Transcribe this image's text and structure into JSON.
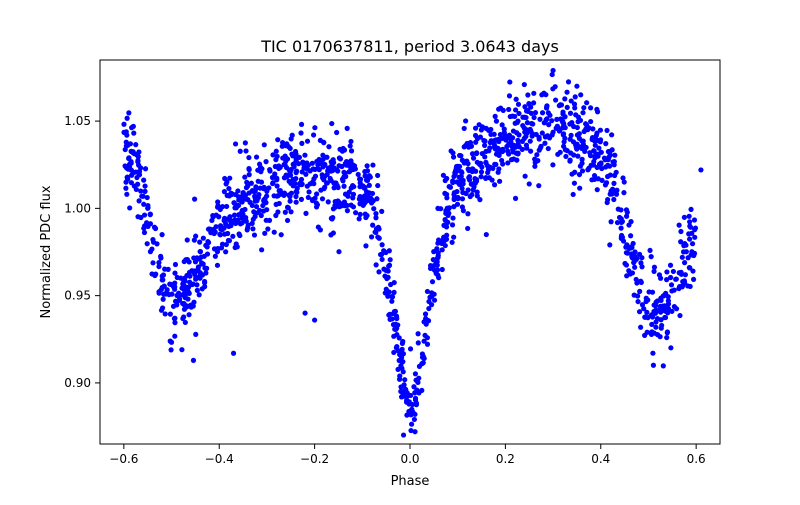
{
  "title": "TIC 0170637811, period 3.0643 days",
  "xlabel": "Phase",
  "ylabel": "Normalized PDC flux",
  "chart_data": {
    "type": "scatter",
    "title": "TIC 0170637811, period 3.0643 days",
    "xlabel": "Phase",
    "ylabel": "Normalized PDC flux",
    "xlim": [
      -0.65,
      0.65
    ],
    "ylim": [
      0.865,
      1.085
    ],
    "x_ticks": [
      -0.6,
      -0.4,
      -0.2,
      0.0,
      0.2,
      0.4,
      0.6
    ],
    "x_tick_labels": [
      "−0.6",
      "−0.4",
      "−0.2",
      "0.0",
      "0.2",
      "0.4",
      "0.6"
    ],
    "y_ticks": [
      0.9,
      0.95,
      1.0,
      1.05
    ],
    "y_tick_labels": [
      "0.90",
      "0.95",
      "1.00",
      "1.05"
    ],
    "grid": false,
    "legend": "none",
    "marker_color": "#0000ff",
    "phase_range": [
      -0.6,
      0.6
    ],
    "light_curve_profile": [
      [
        -0.6,
        1.022
      ],
      [
        -0.58,
        1.03
      ],
      [
        -0.56,
        1.008
      ],
      [
        -0.54,
        0.98
      ],
      [
        -0.52,
        0.955
      ],
      [
        -0.5,
        0.942
      ],
      [
        -0.48,
        0.945
      ],
      [
        -0.46,
        0.955
      ],
      [
        -0.44,
        0.968
      ],
      [
        -0.42,
        0.98
      ],
      [
        -0.4,
        0.99
      ],
      [
        -0.36,
        1.0
      ],
      [
        -0.32,
        1.008
      ],
      [
        -0.28,
        1.014
      ],
      [
        -0.24,
        1.018
      ],
      [
        -0.2,
        1.02
      ],
      [
        -0.16,
        1.018
      ],
      [
        -0.12,
        1.015
      ],
      [
        -0.09,
        1.01
      ],
      [
        -0.07,
        0.995
      ],
      [
        -0.05,
        0.965
      ],
      [
        -0.03,
        0.93
      ],
      [
        -0.01,
        0.895
      ],
      [
        0.0,
        0.885
      ],
      [
        0.01,
        0.89
      ],
      [
        0.03,
        0.925
      ],
      [
        0.05,
        0.96
      ],
      [
        0.07,
        0.99
      ],
      [
        0.09,
        1.01
      ],
      [
        0.12,
        1.022
      ],
      [
        0.16,
        1.032
      ],
      [
        0.2,
        1.04
      ],
      [
        0.24,
        1.046
      ],
      [
        0.28,
        1.048
      ],
      [
        0.32,
        1.046
      ],
      [
        0.36,
        1.04
      ],
      [
        0.4,
        1.03
      ],
      [
        0.42,
        1.02
      ],
      [
        0.44,
        1.0
      ],
      [
        0.46,
        0.975
      ],
      [
        0.48,
        0.955
      ],
      [
        0.5,
        0.94
      ],
      [
        0.52,
        0.938
      ],
      [
        0.54,
        0.948
      ],
      [
        0.56,
        0.96
      ],
      [
        0.58,
        0.975
      ],
      [
        0.6,
        0.985
      ]
    ],
    "scatter_sigma": 0.012,
    "n_points": 1600,
    "outliers": [
      [
        -0.22,
        0.94
      ],
      [
        -0.2,
        0.936
      ],
      [
        -0.37,
        0.917
      ],
      [
        0.16,
        0.985
      ],
      [
        0.25,
        1.014
      ],
      [
        0.27,
        1.013
      ],
      [
        0.3,
        1.079
      ],
      [
        0.35,
        1.07
      ],
      [
        0.61,
        1.022
      ]
    ]
  }
}
